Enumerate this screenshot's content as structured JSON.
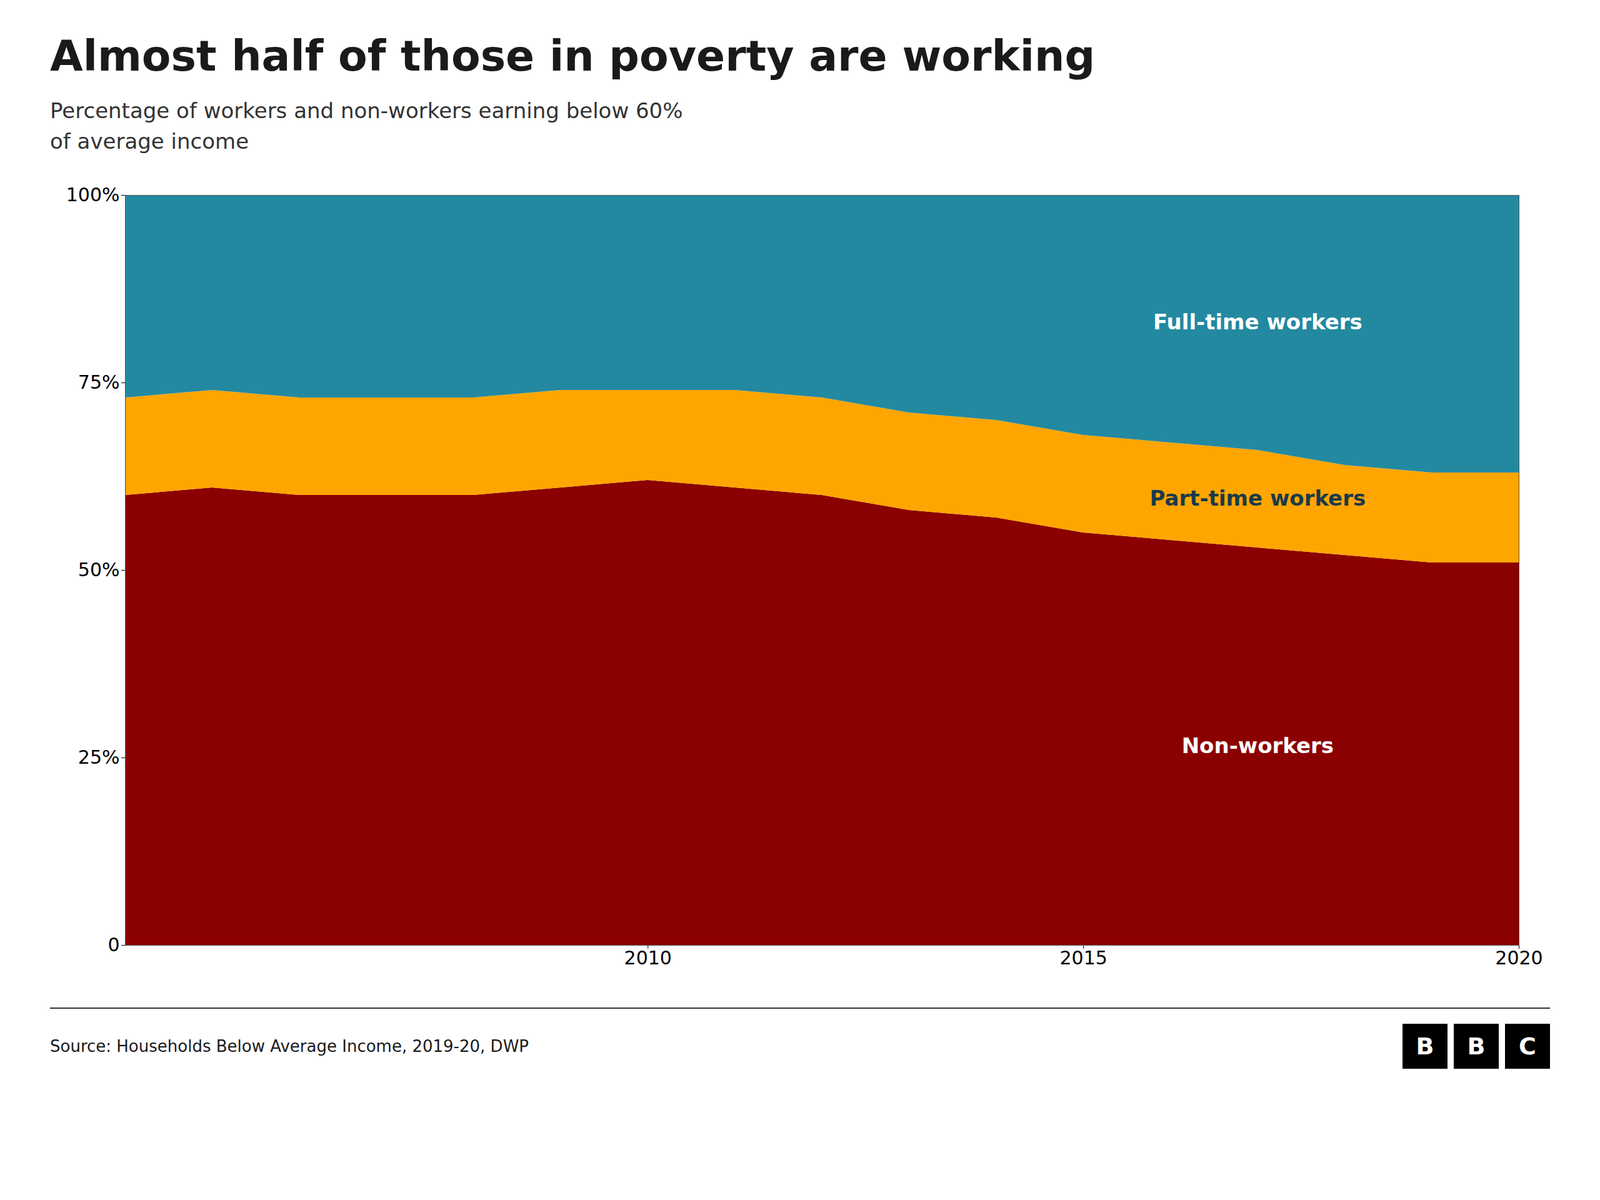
{
  "chart_data": {
    "type": "area",
    "title": "Almost half of those in poverty are working",
    "subtitle": "Percentage of workers and non-workers earning below 60%\nof average income",
    "source": "Source: Households Below Average Income, 2019-20, DWP",
    "annotations": [
      "BBC"
    ],
    "stacked": true,
    "x": [
      2004,
      2005,
      2006,
      2007,
      2008,
      2009,
      2010,
      2011,
      2012,
      2013,
      2014,
      2015,
      2016,
      2017,
      2018,
      2019,
      2020
    ],
    "series": [
      {
        "name": "Non-workers",
        "color": "#8B0000",
        "values": [
          60,
          61,
          60,
          60,
          60,
          61,
          62,
          61,
          60,
          58,
          57,
          55,
          54,
          53,
          52,
          51,
          51
        ]
      },
      {
        "name": "Part-time workers",
        "color": "#FFA500",
        "values": [
          13,
          13,
          13,
          13,
          13,
          13,
          12,
          13,
          13,
          13,
          13,
          13,
          13,
          13,
          12,
          12,
          12
        ]
      },
      {
        "name": "Full-time workers",
        "color": "#2389A0",
        "values": [
          27,
          26,
          27,
          27,
          27,
          26,
          26,
          26,
          27,
          29,
          30,
          32,
          33,
          34,
          36,
          37,
          37
        ]
      }
    ],
    "xlim": [
      2004,
      2020
    ],
    "xticks": [
      2010,
      2015,
      2020
    ],
    "ylim": [
      0,
      100
    ],
    "yticks": [
      0,
      {
        "value": 25,
        "label": "25%"
      },
      {
        "value": 50,
        "label": "50%"
      },
      {
        "value": 75,
        "label": "75%"
      },
      {
        "value": 100,
        "label": "100%"
      }
    ],
    "grid": true
  }
}
